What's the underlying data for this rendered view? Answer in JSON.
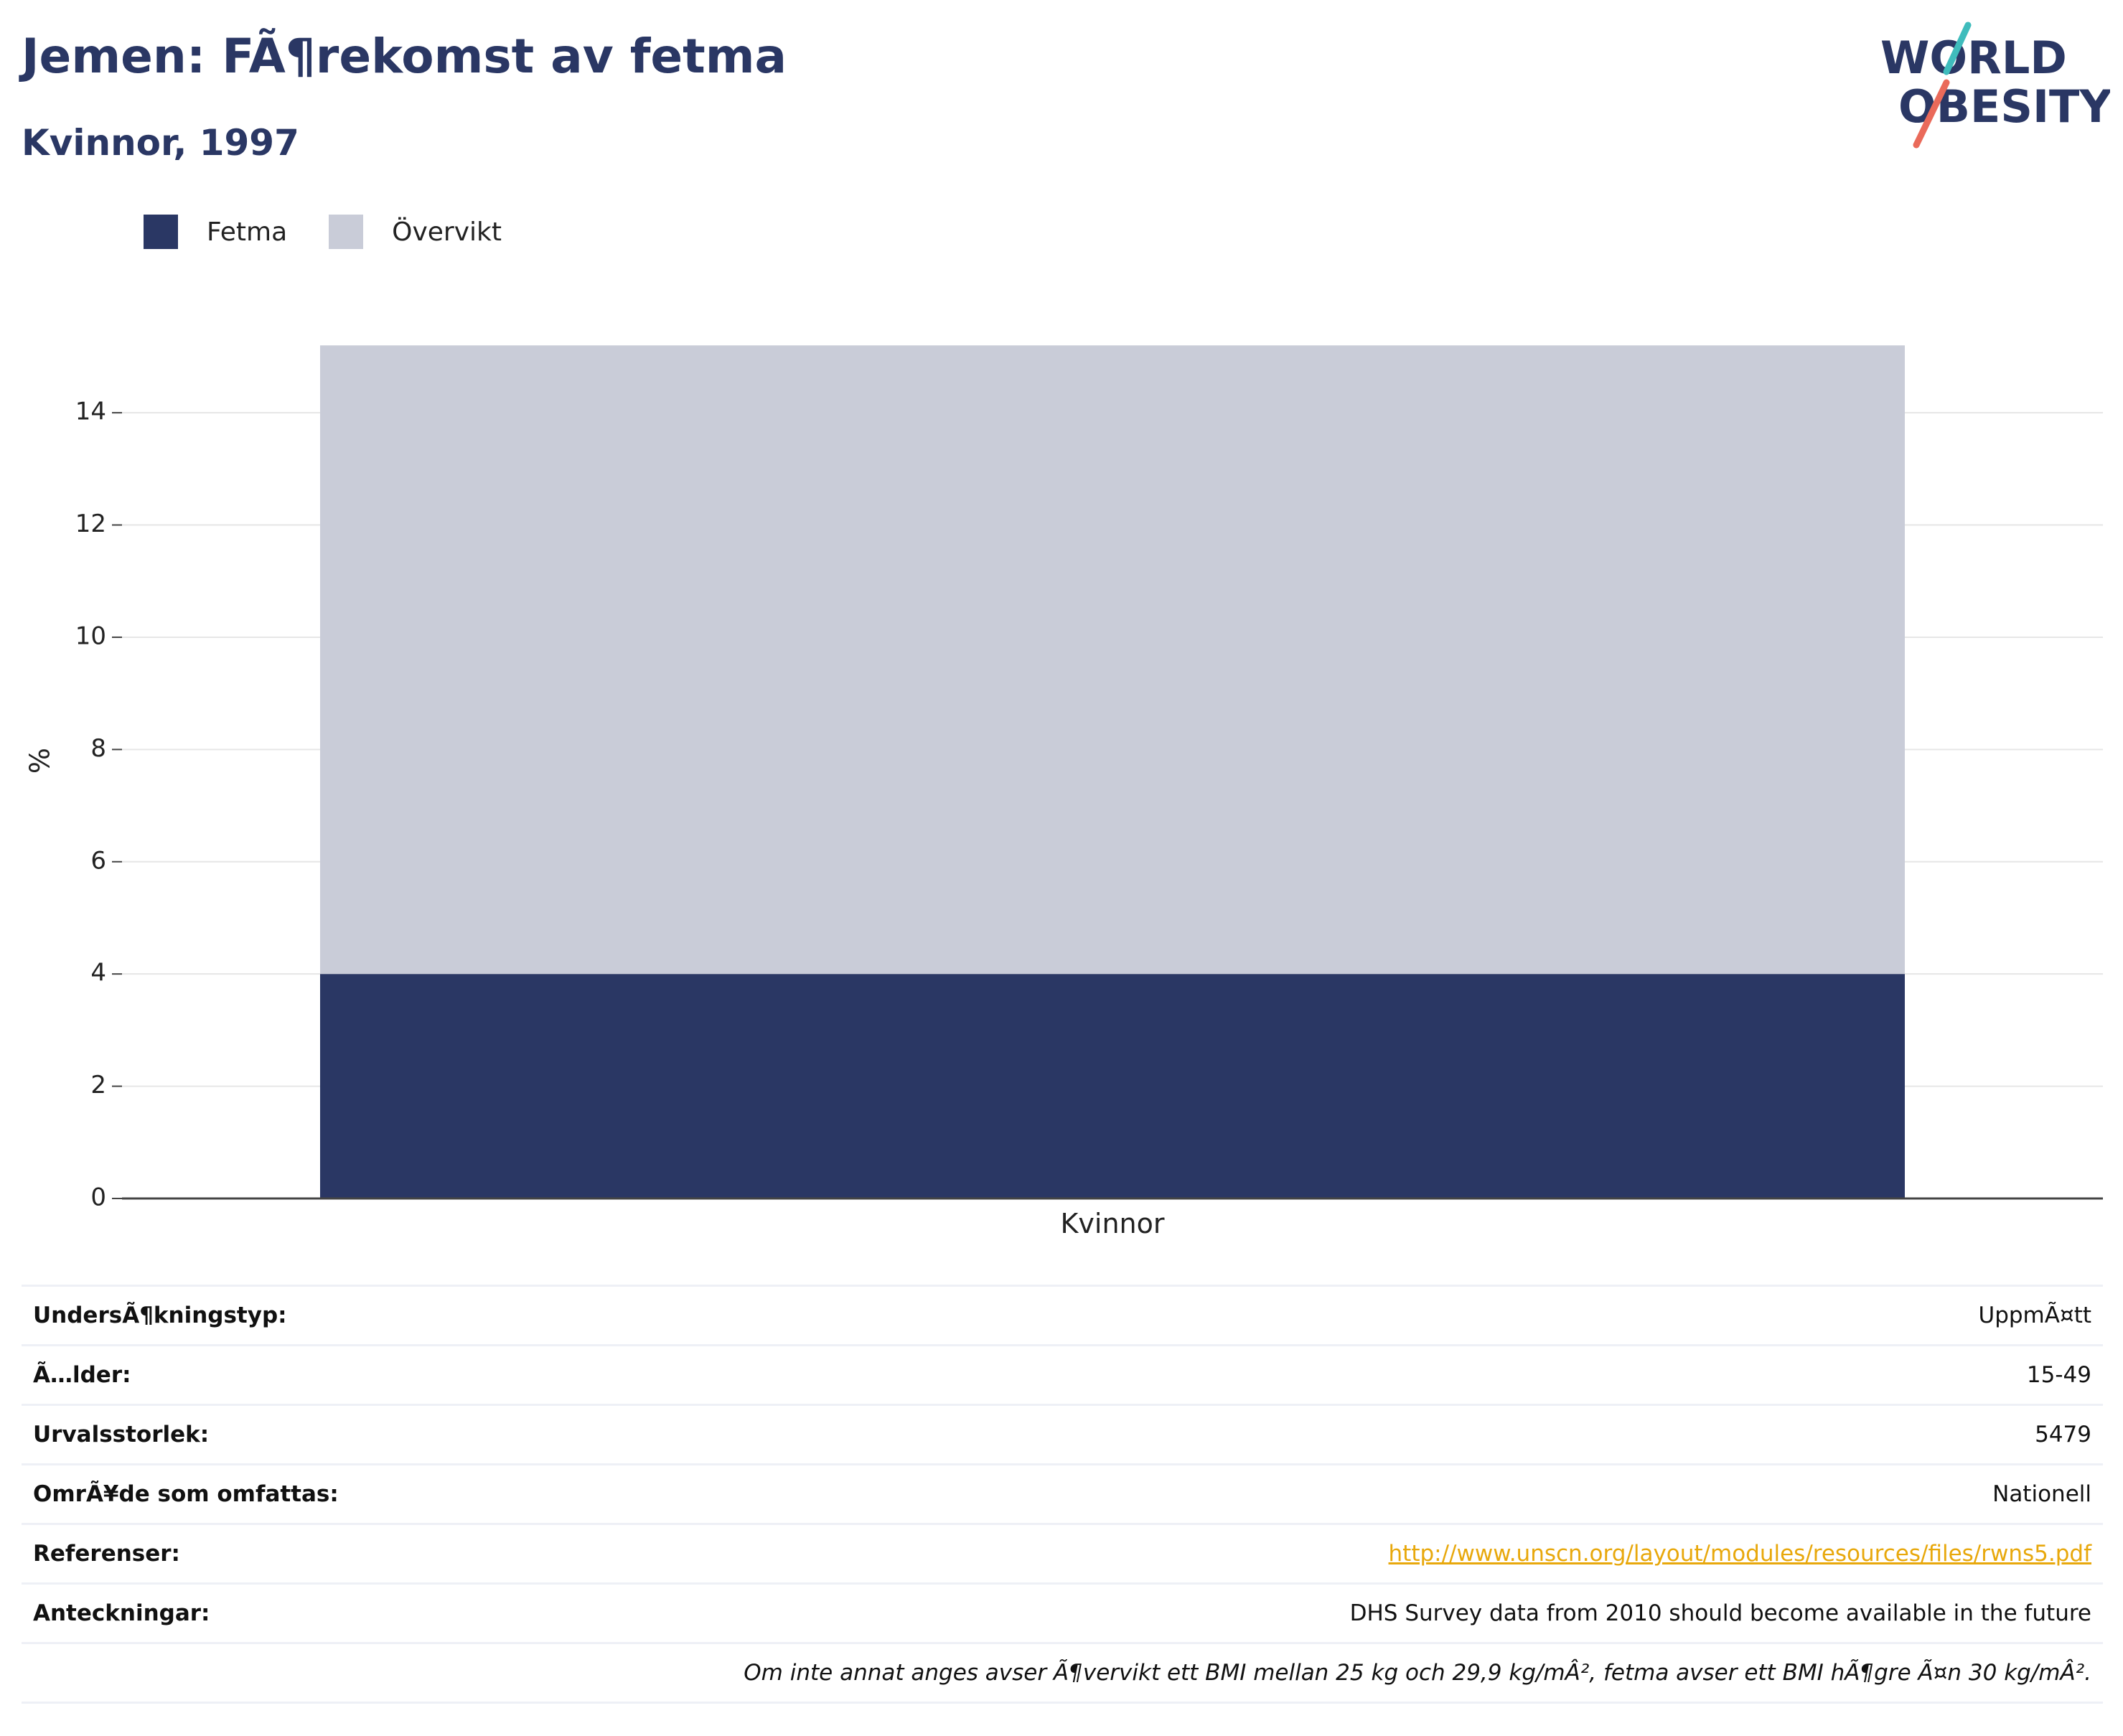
{
  "header": {
    "title": "Jemen: FÃ¶rekomst av fetma",
    "subtitle": "Kvinnor, 1997"
  },
  "logo": {
    "line1": "WORLD",
    "line2": "OBESITY",
    "colors": {
      "text": "#2a3764",
      "teal": "#3fbcbc",
      "coral": "#ea6a5a"
    }
  },
  "legend": {
    "items": [
      {
        "label": "Fetma",
        "color": "#2a3764"
      },
      {
        "label": "Övervikt",
        "color": "#c9ccd8"
      }
    ]
  },
  "chart_data": {
    "type": "bar",
    "stacked": true,
    "categories": [
      "Kvinnor"
    ],
    "series": [
      {
        "name": "Fetma",
        "values": [
          4.0
        ],
        "color": "#2a3764"
      },
      {
        "name": "Övervikt",
        "values": [
          11.2
        ],
        "color": "#c9ccd8"
      }
    ],
    "ylabel": "%",
    "xlabel": "",
    "ylim": [
      0,
      15.6
    ],
    "yticks": [
      0,
      2,
      4,
      6,
      8,
      10,
      12,
      14
    ],
    "grid": true,
    "legend_position": "top-left"
  },
  "info": {
    "rows": [
      {
        "key": "UndersÃ¶kningstyp:",
        "value": "UppmÃ¤tt"
      },
      {
        "key": "Ã…lder:",
        "value": "15-49"
      },
      {
        "key": "Urvalsstorlek:",
        "value": "5479"
      },
      {
        "key": "OmrÃ¥de som omfattas:",
        "value": "Nationell"
      },
      {
        "key": "Referenser:",
        "value": "http://www.unscn.org/layout/modules/resources/files/rwns5.pdf",
        "link": true
      },
      {
        "key": "Anteckningar:",
        "value": "DHS Survey data from 2010 should become available in the future"
      }
    ],
    "footnote": "Om inte annat anges avser Ã¶vervikt ett BMI mellan 25 kg och 29,9 kg/mÂ², fetma avser ett BMI hÃ¶gre Ã¤n 30 kg/mÂ²."
  }
}
